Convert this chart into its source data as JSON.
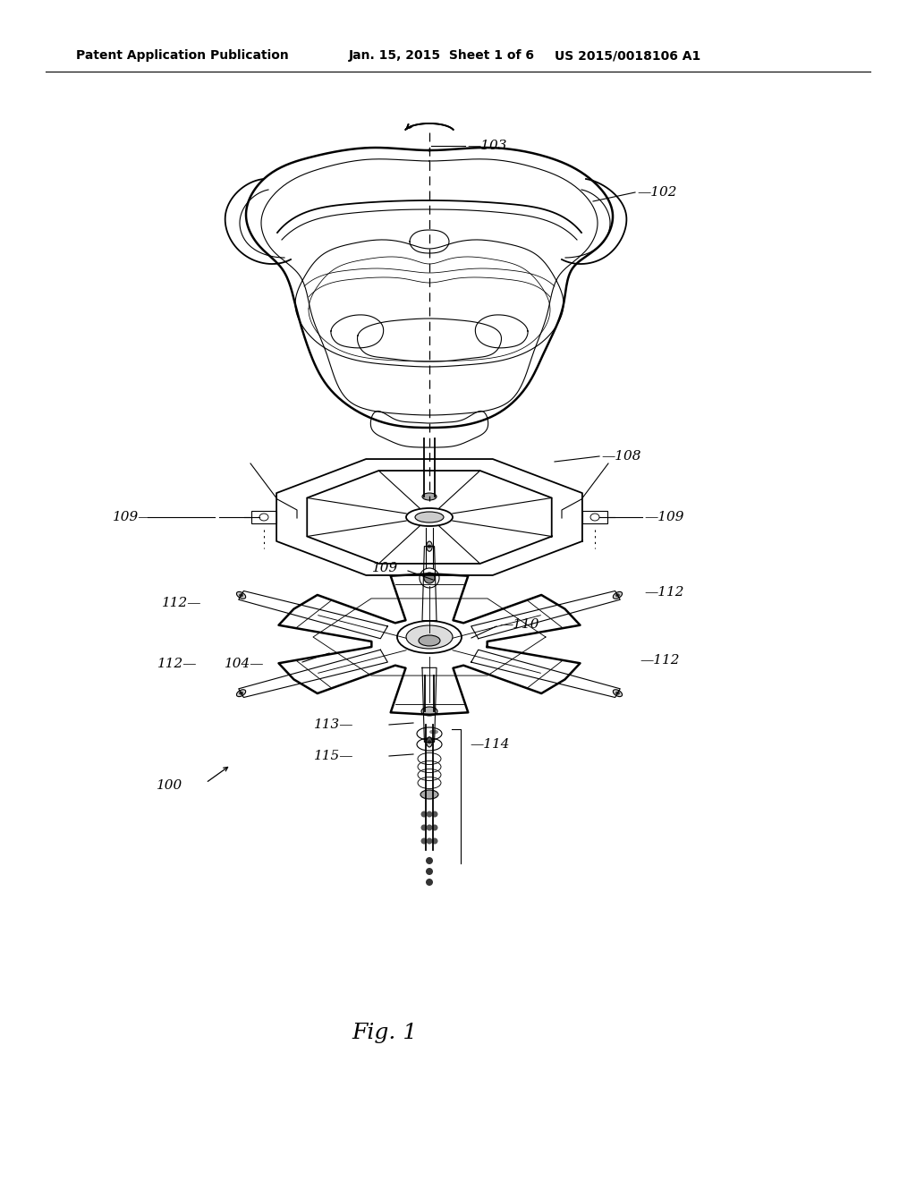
{
  "bg_color": "#ffffff",
  "line_color": "#000000",
  "header_left": "Patent Application Publication",
  "header_mid": "Jan. 15, 2015  Sheet 1 of 6",
  "header_right": "US 2015/0018106 A1",
  "fig_label": "Fig. 1",
  "label_fontsize": 11,
  "header_fontsize": 10,
  "fig_fontsize": 18
}
